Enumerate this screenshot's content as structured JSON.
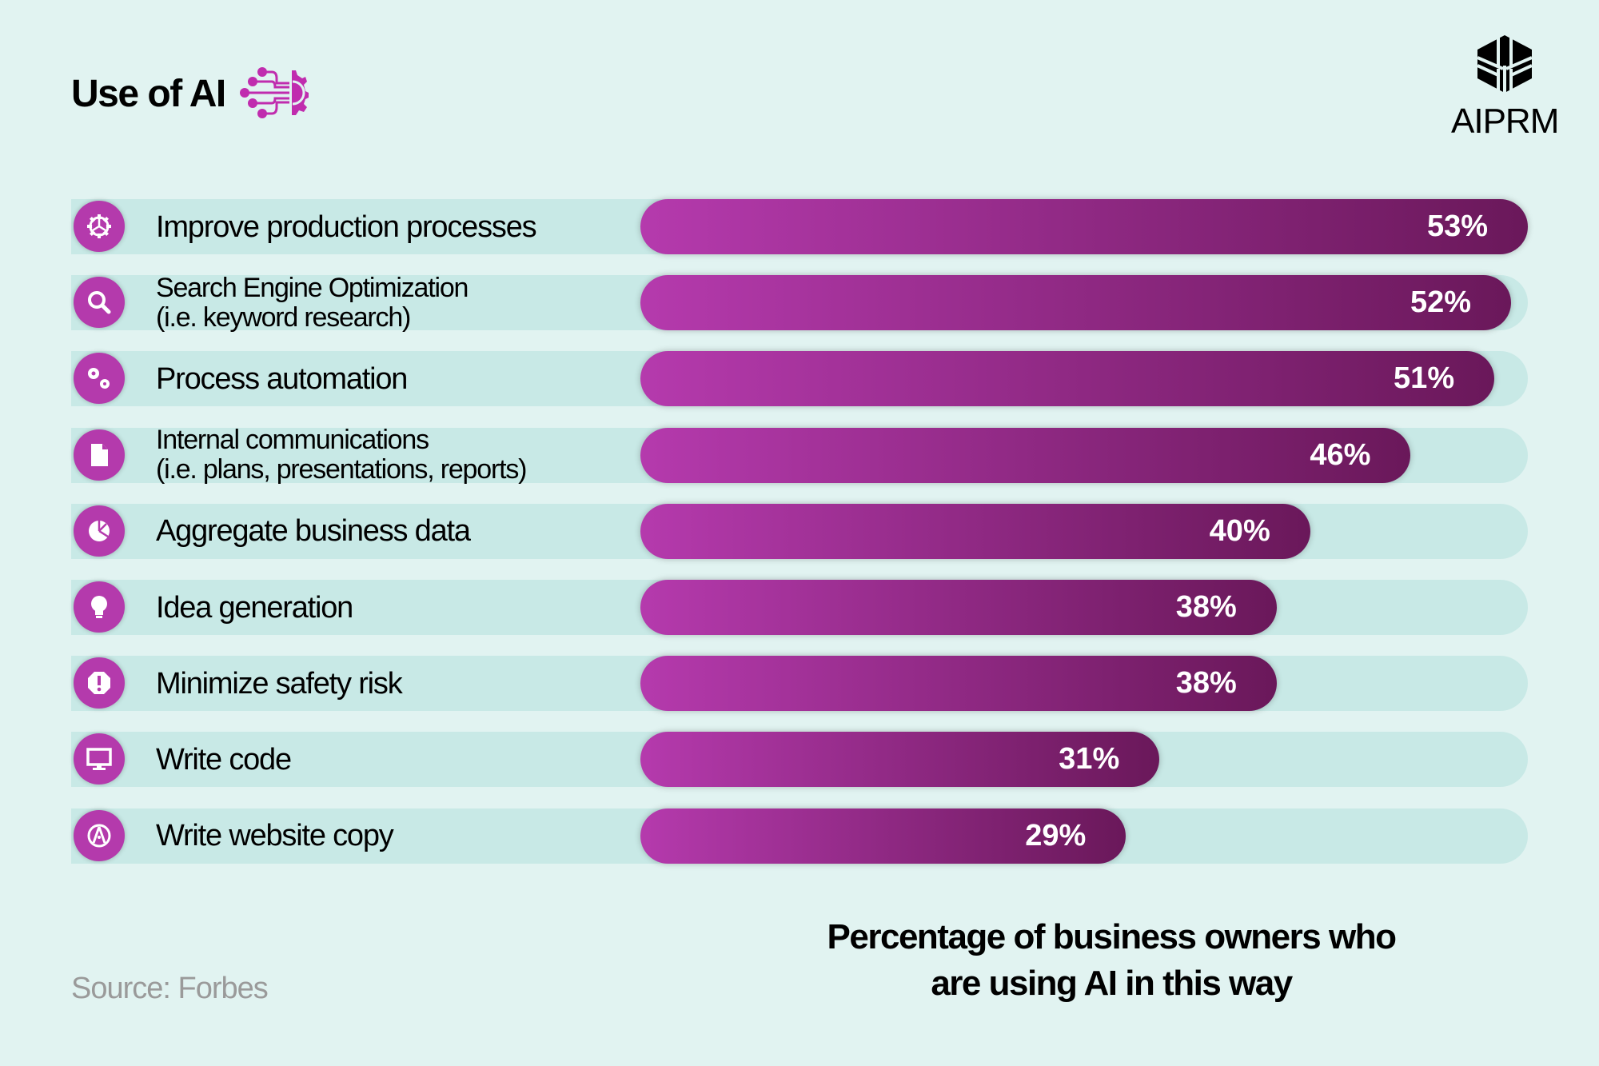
{
  "header": {
    "title": "Use of AI",
    "title_icon": "ai-circuit-gear-icon"
  },
  "logo": {
    "text": "AIPRM"
  },
  "colors": {
    "background": "#e1f3f1",
    "track": "#c8e9e6",
    "bar_start": "#b53aad",
    "bar_end": "#6a185a",
    "icon": "#b43aac"
  },
  "chart_data": {
    "type": "bar",
    "orientation": "horizontal",
    "categories": [
      [
        "Improve production processes"
      ],
      [
        "Search Engine Optimization",
        "(i.e. keyword research)"
      ],
      [
        "Process automation"
      ],
      [
        "Internal communications",
        "(i.e. plans, presentations, reports)"
      ],
      [
        "Aggregate business data"
      ],
      [
        "Idea generation"
      ],
      [
        "Minimize safety risk"
      ],
      [
        "Write code"
      ],
      [
        "Write website copy"
      ]
    ],
    "icons": [
      "gear-icon",
      "search-icon",
      "gears-icon",
      "document-icon",
      "pie-chart-icon",
      "lightbulb-icon",
      "warning-icon",
      "monitor-icon",
      "pen-nib-icon"
    ],
    "values": [
      53,
      52,
      51,
      46,
      40,
      38,
      38,
      31,
      29
    ],
    "labels": [
      "53%",
      "52%",
      "51%",
      "46%",
      "40%",
      "38%",
      "38%",
      "31%",
      "29%"
    ],
    "unit": "%",
    "xlim": [
      0,
      53
    ],
    "caption": [
      "Percentage of business owners who",
      "are using AI in this way"
    ],
    "grid": false
  },
  "footer": {
    "source": "Source: Forbes"
  }
}
